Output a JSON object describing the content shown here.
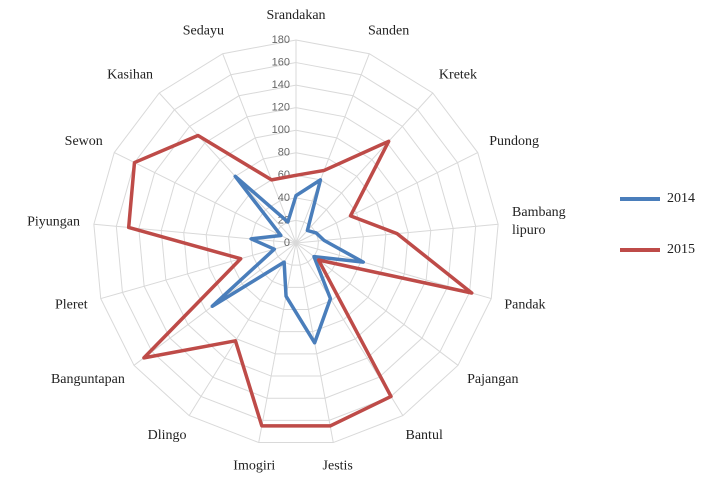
{
  "chart_data": {
    "type": "radar",
    "categories": [
      "Srandakan",
      "Sanden",
      "Kretek",
      "Pundong",
      "Bambang lipuro",
      "Pandak",
      "Pajangan",
      "Bantul",
      "Jestis",
      "Imogiri",
      "Dlingo",
      "Banguntapan",
      "Pleret",
      "Piyungan",
      "Sewon",
      "Kasihan",
      "Sedayu"
    ],
    "series": [
      {
        "name": "2014",
        "color": "#4a7ebb",
        "values": [
          42,
          60,
          15,
          20,
          25,
          62,
          20,
          58,
          90,
          48,
          20,
          93,
          20,
          40,
          15,
          80,
          20
        ]
      },
      {
        "name": "2015",
        "color": "#be4b48",
        "values": [
          60,
          69,
          122,
          54,
          90,
          162,
          25,
          160,
          165,
          165,
          102,
          169,
          51,
          149,
          160,
          129,
          60
        ]
      }
    ],
    "ylim": [
      0,
      180
    ],
    "yticks": [
      0,
      20,
      40,
      60,
      80,
      100,
      120,
      140,
      160,
      180
    ],
    "grid": true,
    "legend": "right"
  }
}
